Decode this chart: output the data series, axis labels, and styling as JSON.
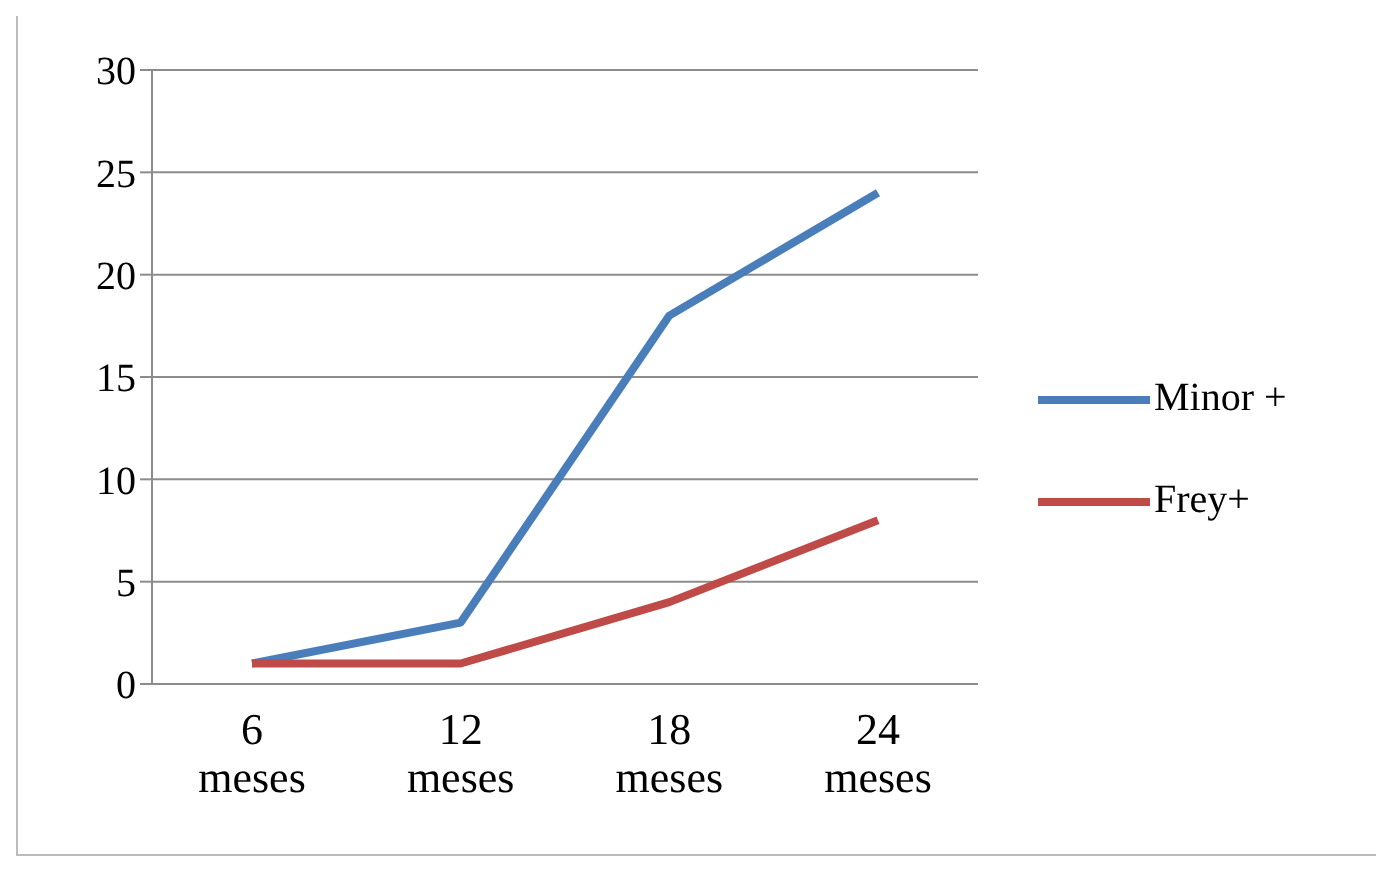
{
  "chart_data": {
    "type": "line",
    "categories": [
      "6 meses",
      "12 meses",
      "18 meses",
      "24 meses"
    ],
    "series": [
      {
        "name": "Minor +",
        "color": "#4a7ebb",
        "values": [
          1,
          3,
          18,
          24
        ]
      },
      {
        "name": "Frey+",
        "color": "#be4b48",
        "values": [
          1,
          1,
          4,
          8
        ]
      }
    ],
    "ylim": [
      0,
      30
    ],
    "yticks": [
      0,
      5,
      10,
      15,
      20,
      25,
      30
    ],
    "grid": "y",
    "legend": "right",
    "marker": "none",
    "line_style": "solid"
  }
}
